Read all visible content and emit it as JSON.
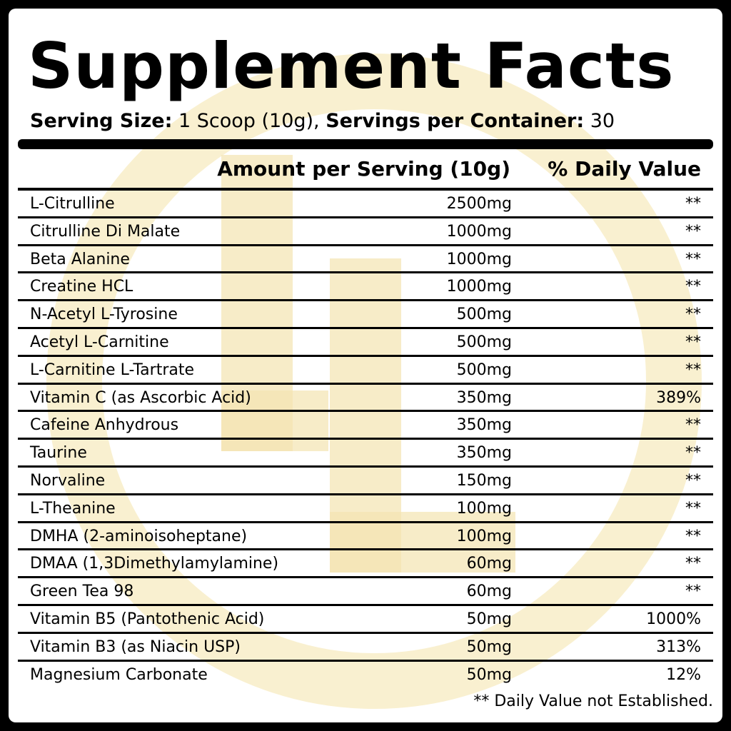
{
  "title": "Supplement Facts",
  "serving": {
    "size_label": "Serving Size:",
    "size_value": " 1 Scoop (10g), ",
    "servings_label": "Servings per Container:",
    "servings_value": " 30"
  },
  "table": {
    "header_amount": "Amount per Serving (10g)",
    "header_dv": "% Daily Value",
    "rows": [
      {
        "name": "L-Citrulline",
        "amount": "2500mg",
        "dv": "**"
      },
      {
        "name": "Citrulline Di Malate",
        "amount": "1000mg",
        "dv": "**"
      },
      {
        "name": "Beta Alanine",
        "amount": "1000mg",
        "dv": "**"
      },
      {
        "name": "Creatine HCL",
        "amount": "1000mg",
        "dv": "**"
      },
      {
        "name": "N-Acetyl L-Tyrosine",
        "amount": "500mg",
        "dv": "**"
      },
      {
        "name": "Acetyl L-Carnitine",
        "amount": "500mg",
        "dv": "**"
      },
      {
        "name": "L-Carnitine L-Tartrate",
        "amount": "500mg",
        "dv": "**"
      },
      {
        "name": "Vitamin C (as Ascorbic Acid)",
        "amount": "350mg",
        "dv": "389%"
      },
      {
        "name": "Cafeine Anhydrous",
        "amount": "350mg",
        "dv": "**"
      },
      {
        "name": "Taurine",
        "amount": "350mg",
        "dv": "**"
      },
      {
        "name": "Norvaline",
        "amount": "150mg",
        "dv": "**"
      },
      {
        "name": "L-Theanine",
        "amount": "100mg",
        "dv": "**"
      },
      {
        "name": "DMHA (2-aminoisoheptane)",
        "amount": "100mg",
        "dv": "**"
      },
      {
        "name": "DMAA (1,3Dimethylamylamine)",
        "amount": "60mg",
        "dv": "**"
      },
      {
        "name": "Green Tea 98",
        "amount": "60mg",
        "dv": "**"
      },
      {
        "name": "Vitamin B5 (Pantothenic Acid)",
        "amount": "50mg",
        "dv": "1000%"
      },
      {
        "name": "Vitamin B3 (as Niacin USP)",
        "amount": "50mg",
        "dv": "313%"
      },
      {
        "name": "Magnesium Carbonate",
        "amount": "50mg",
        "dv": "12%"
      }
    ]
  },
  "footnote": "** Daily Value not Established.",
  "colors": {
    "background": "#000000",
    "panel": "#ffffff",
    "text": "#000000",
    "watermark": "#f6e8b8"
  },
  "watermark_icon": "gold-circle-logo-icon"
}
